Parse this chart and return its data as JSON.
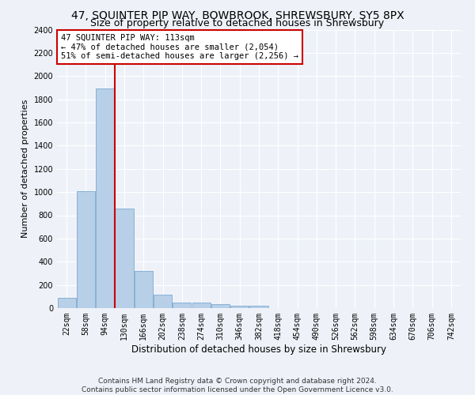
{
  "title": "47, SQUINTER PIP WAY, BOWBROOK, SHREWSBURY, SY5 8PX",
  "subtitle": "Size of property relative to detached houses in Shrewsbury",
  "xlabel": "Distribution of detached houses by size in Shrewsbury",
  "ylabel": "Number of detached properties",
  "bin_labels": [
    "22sqm",
    "58sqm",
    "94sqm",
    "130sqm",
    "166sqm",
    "202sqm",
    "238sqm",
    "274sqm",
    "310sqm",
    "346sqm",
    "382sqm",
    "418sqm",
    "454sqm",
    "490sqm",
    "526sqm",
    "562sqm",
    "598sqm",
    "634sqm",
    "670sqm",
    "706sqm",
    "742sqm"
  ],
  "bar_heights": [
    90,
    1010,
    1890,
    855,
    320,
    115,
    50,
    45,
    35,
    20,
    20,
    0,
    0,
    0,
    0,
    0,
    0,
    0,
    0,
    0,
    0
  ],
  "bar_color": "#b8cfe8",
  "bar_edge_color": "#7aaad0",
  "background_color": "#eef2f8",
  "grid_color": "#ffffff",
  "vline_color": "#cc0000",
  "annotation_text": "47 SQUINTER PIP WAY: 113sqm\n← 47% of detached houses are smaller (2,054)\n51% of semi-detached houses are larger (2,256) →",
  "annotation_box_color": "#ffffff",
  "annotation_box_edge": "#cc0000",
  "ylim": [
    0,
    2400
  ],
  "yticks": [
    0,
    200,
    400,
    600,
    800,
    1000,
    1200,
    1400,
    1600,
    1800,
    2000,
    2200,
    2400
  ],
  "footer_text": "Contains HM Land Registry data © Crown copyright and database right 2024.\nContains public sector information licensed under the Open Government Licence v3.0.",
  "title_fontsize": 10,
  "subtitle_fontsize": 9,
  "xlabel_fontsize": 8.5,
  "ylabel_fontsize": 8,
  "annotation_fontsize": 7.5,
  "footer_fontsize": 6.5,
  "tick_fontsize": 7
}
